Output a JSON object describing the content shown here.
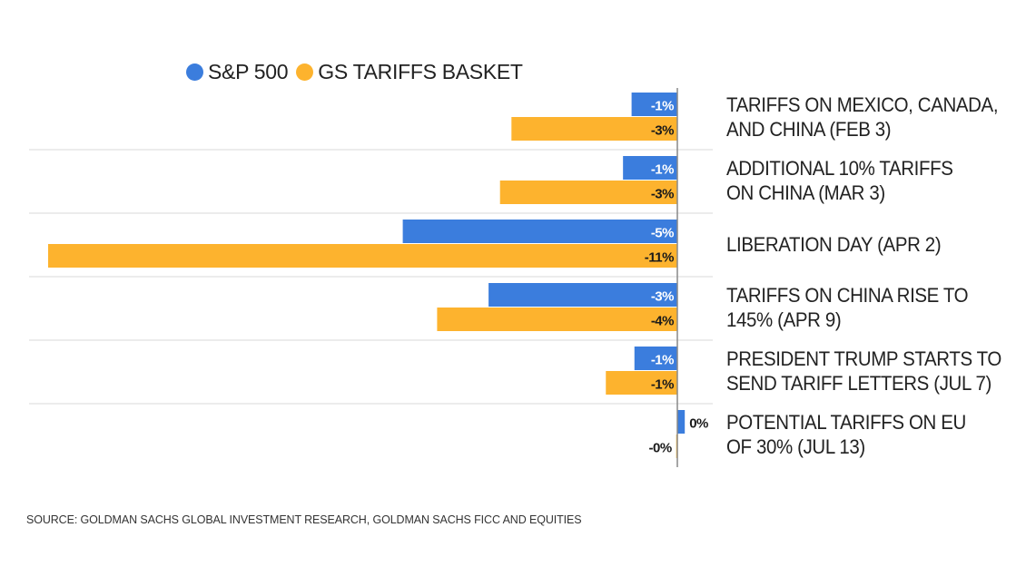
{
  "chart_data": {
    "type": "bar",
    "orientation": "horizontal",
    "title": "",
    "xlabel": "",
    "ylabel": "",
    "xlim": [
      -11.0,
      0.7
    ],
    "grid": false,
    "legend_position": "top-left",
    "categories": [
      "TARIFFS ON MEXICO, CANADA, AND CHINA (FEB 3)",
      "ADDITIONAL 10% TARIFFS ON CHINA (MAR 3)",
      "LIBERATION DAY (APR 2)",
      "TARIFFS ON CHINA RISE TO 145% (APR 9)",
      "PRESIDENT TRUMP STARTS TO SEND TARIFF LETTERS (JUL 7)",
      "POTENTIAL TARIFFS ON EU OF 30% (JUL 13)"
    ],
    "category_lines": [
      [
        "TARIFFS ON MEXICO, CANADA,",
        "AND CHINA (FEB 3)"
      ],
      [
        "ADDITIONAL 10% TARIFFS",
        "ON CHINA (MAR 3)"
      ],
      [
        "LIBERATION DAY (APR 2)"
      ],
      [
        "TARIFFS ON CHINA RISE TO",
        "145% (APR 9)"
      ],
      [
        "PRESIDENT TRUMP STARTS TO",
        "SEND TARIFF LETTERS (JUL 7)"
      ],
      [
        "POTENTIAL TARIFFS ON EU",
        "OF 30% (JUL 13)"
      ]
    ],
    "series": [
      {
        "name": "S&P 500",
        "color": "#3b7ddd",
        "label_color": "#ffffff",
        "values": [
          -0.8,
          -0.95,
          -4.8,
          -3.3,
          -0.75,
          0.13
        ],
        "data_labels": [
          "-1%",
          "-1%",
          "-5%",
          "-3%",
          "-1%",
          "0%"
        ]
      },
      {
        "name": "GS TARIFFS BASKET",
        "color": "#fdb32e",
        "label_color": "#1a1a1a",
        "values": [
          -2.9,
          -3.1,
          -11.0,
          -4.2,
          -1.25,
          -0.02
        ],
        "data_labels": [
          "-3%",
          "-3%",
          "-11%",
          "-4%",
          "-1%",
          "-0%"
        ]
      }
    ],
    "source": "SOURCE: GOLDMAN SACHS GLOBAL INVESTMENT RESEARCH, GOLDMAN SACHS FICC AND EQUITIES"
  },
  "legend": [
    {
      "label": "S&P 500",
      "color": "#3b7ddd"
    },
    {
      "label": "GS TARIFFS BASKET",
      "color": "#fdb32e"
    }
  ],
  "colors": {
    "axis": "#888888",
    "separator": "#e6e6e6",
    "text": "#222222"
  }
}
